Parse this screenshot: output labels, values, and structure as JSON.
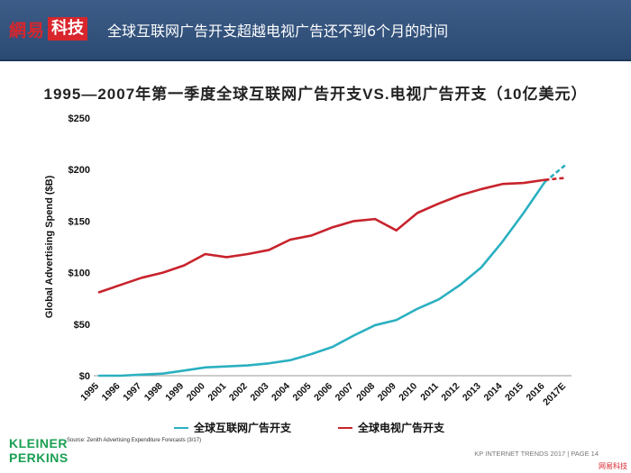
{
  "header": {
    "logo_text": "網易",
    "logo_badge": "科技",
    "title": "全球互联网广告开支超越电视广告还不到6个月的时间"
  },
  "chart_data": {
    "type": "line",
    "title": "1995—2007年第一季度全球互联网广告开支VS.电视广告开支（10亿美元）",
    "xlabel": "",
    "ylabel": "Global Advertising Spend ($B)",
    "ylim": [
      0,
      250
    ],
    "yticks": [
      0,
      50,
      100,
      150,
      200,
      250
    ],
    "ytick_labels": [
      "$0",
      "$50",
      "$100",
      "$150",
      "$200",
      "$250"
    ],
    "categories": [
      "1995",
      "1996",
      "1997",
      "1998",
      "1999",
      "2000",
      "2001",
      "2002",
      "2003",
      "2004",
      "2005",
      "2006",
      "2007",
      "2008",
      "2009",
      "2010",
      "2011",
      "2012",
      "2013",
      "2014",
      "2015",
      "2016",
      "2017E"
    ],
    "grid": false,
    "legend_position": "bottom",
    "series": [
      {
        "name": "全球互联网广告开支",
        "color": "#2bb0c1",
        "values": [
          0,
          0,
          1,
          2,
          5,
          8,
          9,
          10,
          12,
          15,
          21,
          28,
          39,
          49,
          54,
          65,
          74,
          88,
          105,
          130,
          158,
          188,
          205
        ],
        "dashed_last_segment": true
      },
      {
        "name": "全球电视广告开支",
        "color": "#c8232c",
        "values": [
          81,
          88,
          95,
          100,
          107,
          118,
          115,
          118,
          122,
          132,
          136,
          144,
          150,
          152,
          141,
          158,
          167,
          175,
          181,
          186,
          187,
          190,
          192
        ],
        "dashed_last_segment": true
      }
    ]
  },
  "brand": {
    "line1": "KLEINER",
    "line2": "PERKINS"
  },
  "source": "Source: Zenith Advertising Expenditure Forecasts (3/17)",
  "footer": "KP INTERNET TRENDS 2017   |   PAGE 14",
  "watermark": "网易科技"
}
